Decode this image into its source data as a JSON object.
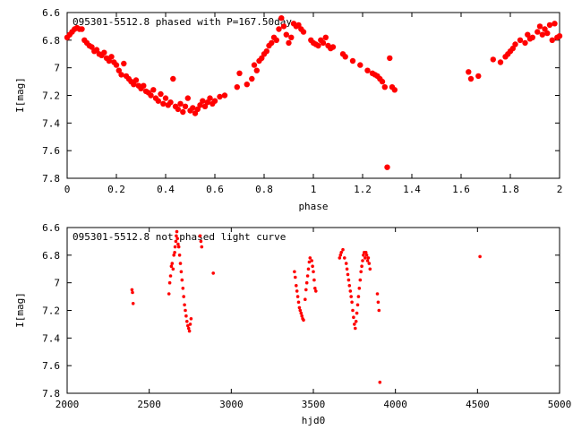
{
  "chart_data": [
    {
      "type": "scatter",
      "title": "095301-5512.8 phased with P=167.50day",
      "xlabel": "phase",
      "ylabel": "I[mag]",
      "xlim": [
        0,
        2
      ],
      "ylim": [
        6.6,
        7.8
      ],
      "y_inverted": true,
      "x_ticks": [
        "0",
        "0.2",
        "0.4",
        "0.6",
        "0.8",
        "1",
        "1.2",
        "1.4",
        "1.6",
        "1.8",
        "2"
      ],
      "y_ticks": [
        "6.6",
        "6.8",
        "7",
        "7.2",
        "7.4",
        "7.6",
        "7.8"
      ],
      "marker_color": "#ff0000",
      "grid": false,
      "points": [
        [
          0.0,
          6.78
        ],
        [
          0.01,
          6.76
        ],
        [
          0.02,
          6.74
        ],
        [
          0.03,
          6.72
        ],
        [
          0.04,
          6.71
        ],
        [
          0.05,
          6.72
        ],
        [
          0.06,
          6.72
        ],
        [
          0.07,
          6.8
        ],
        [
          0.08,
          6.82
        ],
        [
          0.09,
          6.84
        ],
        [
          0.1,
          6.85
        ],
        [
          0.11,
          6.88
        ],
        [
          0.12,
          6.87
        ],
        [
          0.13,
          6.9
        ],
        [
          0.14,
          6.91
        ],
        [
          0.15,
          6.89
        ],
        [
          0.16,
          6.93
        ],
        [
          0.17,
          6.95
        ],
        [
          0.18,
          6.92
        ],
        [
          0.19,
          6.96
        ],
        [
          0.2,
          6.98
        ],
        [
          0.21,
          7.02
        ],
        [
          0.22,
          7.05
        ],
        [
          0.23,
          6.97
        ],
        [
          0.24,
          7.06
        ],
        [
          0.25,
          7.08
        ],
        [
          0.26,
          7.1
        ],
        [
          0.27,
          7.12
        ],
        [
          0.28,
          7.09
        ],
        [
          0.29,
          7.13
        ],
        [
          0.3,
          7.15
        ],
        [
          0.31,
          7.13
        ],
        [
          0.32,
          7.17
        ],
        [
          0.33,
          7.18
        ],
        [
          0.34,
          7.2
        ],
        [
          0.35,
          7.16
        ],
        [
          0.36,
          7.22
        ],
        [
          0.37,
          7.24
        ],
        [
          0.38,
          7.19
        ],
        [
          0.39,
          7.26
        ],
        [
          0.4,
          7.22
        ],
        [
          0.41,
          7.27
        ],
        [
          0.42,
          7.25
        ],
        [
          0.43,
          7.08
        ],
        [
          0.44,
          7.28
        ],
        [
          0.45,
          7.3
        ],
        [
          0.46,
          7.26
        ],
        [
          0.47,
          7.32
        ],
        [
          0.48,
          7.28
        ],
        [
          0.49,
          7.22
        ],
        [
          0.5,
          7.31
        ],
        [
          0.51,
          7.29
        ],
        [
          0.52,
          7.33
        ],
        [
          0.53,
          7.3
        ],
        [
          0.54,
          7.27
        ],
        [
          0.55,
          7.24
        ],
        [
          0.56,
          7.28
        ],
        [
          0.57,
          7.25
        ],
        [
          0.58,
          7.22
        ],
        [
          0.59,
          7.26
        ],
        [
          0.6,
          7.24
        ],
        [
          0.62,
          7.21
        ],
        [
          0.64,
          7.2
        ],
        [
          0.69,
          7.14
        ],
        [
          0.7,
          7.04
        ],
        [
          0.73,
          7.12
        ],
        [
          0.75,
          7.08
        ],
        [
          0.76,
          6.98
        ],
        [
          0.77,
          7.02
        ],
        [
          0.78,
          6.95
        ],
        [
          0.79,
          6.93
        ],
        [
          0.8,
          6.9
        ],
        [
          0.81,
          6.88
        ],
        [
          0.82,
          6.84
        ],
        [
          0.83,
          6.82
        ],
        [
          0.84,
          6.78
        ],
        [
          0.85,
          6.8
        ],
        [
          0.86,
          6.72
        ],
        [
          0.87,
          6.64
        ],
        [
          0.88,
          6.7
        ],
        [
          0.89,
          6.76
        ],
        [
          0.9,
          6.82
        ],
        [
          0.91,
          6.78
        ],
        [
          0.92,
          6.68
        ],
        [
          0.93,
          6.7
        ],
        [
          0.94,
          6.69
        ],
        [
          0.95,
          6.72
        ],
        [
          0.96,
          6.74
        ],
        [
          0.99,
          6.8
        ],
        [
          1.0,
          6.82
        ],
        [
          1.01,
          6.83
        ],
        [
          1.02,
          6.84
        ],
        [
          1.03,
          6.8
        ],
        [
          1.04,
          6.82
        ],
        [
          1.05,
          6.78
        ],
        [
          1.06,
          6.84
        ],
        [
          1.07,
          6.86
        ],
        [
          1.08,
          6.85
        ],
        [
          1.12,
          6.9
        ],
        [
          1.13,
          6.92
        ],
        [
          1.16,
          6.95
        ],
        [
          1.19,
          6.98
        ],
        [
          1.22,
          7.02
        ],
        [
          1.24,
          7.04
        ],
        [
          1.25,
          7.05
        ],
        [
          1.26,
          7.06
        ],
        [
          1.27,
          7.08
        ],
        [
          1.28,
          7.1
        ],
        [
          1.29,
          7.14
        ],
        [
          1.3,
          7.72
        ],
        [
          1.31,
          6.93
        ],
        [
          1.32,
          7.14
        ],
        [
          1.33,
          7.16
        ],
        [
          1.63,
          7.03
        ],
        [
          1.64,
          7.08
        ],
        [
          1.67,
          7.06
        ],
        [
          1.73,
          6.94
        ],
        [
          1.76,
          6.96
        ],
        [
          1.78,
          6.92
        ],
        [
          1.79,
          6.9
        ],
        [
          1.8,
          6.88
        ],
        [
          1.81,
          6.86
        ],
        [
          1.82,
          6.83
        ],
        [
          1.84,
          6.8
        ],
        [
          1.86,
          6.82
        ],
        [
          1.87,
          6.76
        ],
        [
          1.88,
          6.79
        ],
        [
          1.89,
          6.78
        ],
        [
          1.91,
          6.74
        ],
        [
          1.92,
          6.7
        ],
        [
          1.93,
          6.76
        ],
        [
          1.94,
          6.72
        ],
        [
          1.95,
          6.75
        ],
        [
          1.96,
          6.69
        ],
        [
          1.97,
          6.8
        ],
        [
          1.98,
          6.68
        ],
        [
          1.99,
          6.78
        ],
        [
          2.0,
          6.77
        ]
      ]
    },
    {
      "type": "scatter",
      "title": "095301-5512.8 not phased light curve",
      "xlabel": "hjd0",
      "ylabel": "I[mag]",
      "xlim": [
        2000,
        5000
      ],
      "ylim": [
        6.6,
        7.8
      ],
      "y_inverted": true,
      "x_ticks": [
        "2000",
        "2500",
        "3000",
        "3500",
        "4000",
        "4500",
        "5000"
      ],
      "y_ticks": [
        "6.6",
        "6.8",
        "7",
        "7.2",
        "7.4",
        "7.6",
        "7.8"
      ],
      "marker_color": "#ff0000",
      "grid": false,
      "points": [
        [
          2395,
          7.05
        ],
        [
          2398,
          7.07
        ],
        [
          2402,
          7.15
        ],
        [
          2620,
          7.08
        ],
        [
          2625,
          7.0
        ],
        [
          2630,
          6.95
        ],
        [
          2635,
          6.88
        ],
        [
          2640,
          6.86
        ],
        [
          2645,
          6.9
        ],
        [
          2650,
          6.8
        ],
        [
          2655,
          6.78
        ],
        [
          2658,
          6.74
        ],
        [
          2662,
          6.7
        ],
        [
          2665,
          6.66
        ],
        [
          2668,
          6.63
        ],
        [
          2672,
          6.68
        ],
        [
          2676,
          6.72
        ],
        [
          2680,
          6.74
        ],
        [
          2685,
          6.8
        ],
        [
          2690,
          6.86
        ],
        [
          2695,
          6.92
        ],
        [
          2700,
          6.98
        ],
        [
          2705,
          7.04
        ],
        [
          2710,
          7.1
        ],
        [
          2715,
          7.16
        ],
        [
          2720,
          7.2
        ],
        [
          2725,
          7.24
        ],
        [
          2730,
          7.28
        ],
        [
          2735,
          7.31
        ],
        [
          2740,
          7.33
        ],
        [
          2745,
          7.35
        ],
        [
          2750,
          7.3
        ],
        [
          2755,
          7.26
        ],
        [
          2810,
          6.66
        ],
        [
          2815,
          6.7
        ],
        [
          2820,
          6.74
        ],
        [
          2890,
          6.93
        ],
        [
          3385,
          6.92
        ],
        [
          3390,
          6.96
        ],
        [
          3395,
          7.02
        ],
        [
          3400,
          7.06
        ],
        [
          3405,
          7.1
        ],
        [
          3410,
          7.14
        ],
        [
          3415,
          7.18
        ],
        [
          3420,
          7.2
        ],
        [
          3425,
          7.22
        ],
        [
          3430,
          7.24
        ],
        [
          3435,
          7.26
        ],
        [
          3440,
          7.27
        ],
        [
          3450,
          7.12
        ],
        [
          3455,
          7.05
        ],
        [
          3460,
          7.0
        ],
        [
          3465,
          6.95
        ],
        [
          3470,
          6.9
        ],
        [
          3475,
          6.85
        ],
        [
          3480,
          6.82
        ],
        [
          3490,
          6.84
        ],
        [
          3495,
          6.88
        ],
        [
          3500,
          6.92
        ],
        [
          3505,
          6.98
        ],
        [
          3510,
          7.04
        ],
        [
          3515,
          7.06
        ],
        [
          3660,
          6.82
        ],
        [
          3665,
          6.8
        ],
        [
          3670,
          6.78
        ],
        [
          3680,
          6.76
        ],
        [
          3690,
          6.82
        ],
        [
          3700,
          6.86
        ],
        [
          3705,
          6.9
        ],
        [
          3710,
          6.94
        ],
        [
          3715,
          6.98
        ],
        [
          3720,
          7.02
        ],
        [
          3725,
          7.06
        ],
        [
          3730,
          7.1
        ],
        [
          3735,
          7.14
        ],
        [
          3740,
          7.2
        ],
        [
          3745,
          7.25
        ],
        [
          3750,
          7.3
        ],
        [
          3755,
          7.33
        ],
        [
          3760,
          7.28
        ],
        [
          3765,
          7.22
        ],
        [
          3770,
          7.16
        ],
        [
          3775,
          7.1
        ],
        [
          3780,
          7.04
        ],
        [
          3785,
          6.98
        ],
        [
          3790,
          6.92
        ],
        [
          3795,
          6.88
        ],
        [
          3800,
          6.84
        ],
        [
          3805,
          6.8
        ],
        [
          3810,
          6.78
        ],
        [
          3815,
          6.82
        ],
        [
          3820,
          6.78
        ],
        [
          3825,
          6.8
        ],
        [
          3830,
          6.84
        ],
        [
          3835,
          6.82
        ],
        [
          3840,
          6.86
        ],
        [
          3845,
          6.9
        ],
        [
          3890,
          7.08
        ],
        [
          3895,
          7.14
        ],
        [
          3900,
          7.2
        ],
        [
          3905,
          7.72
        ],
        [
          4515,
          6.81
        ]
      ]
    }
  ]
}
